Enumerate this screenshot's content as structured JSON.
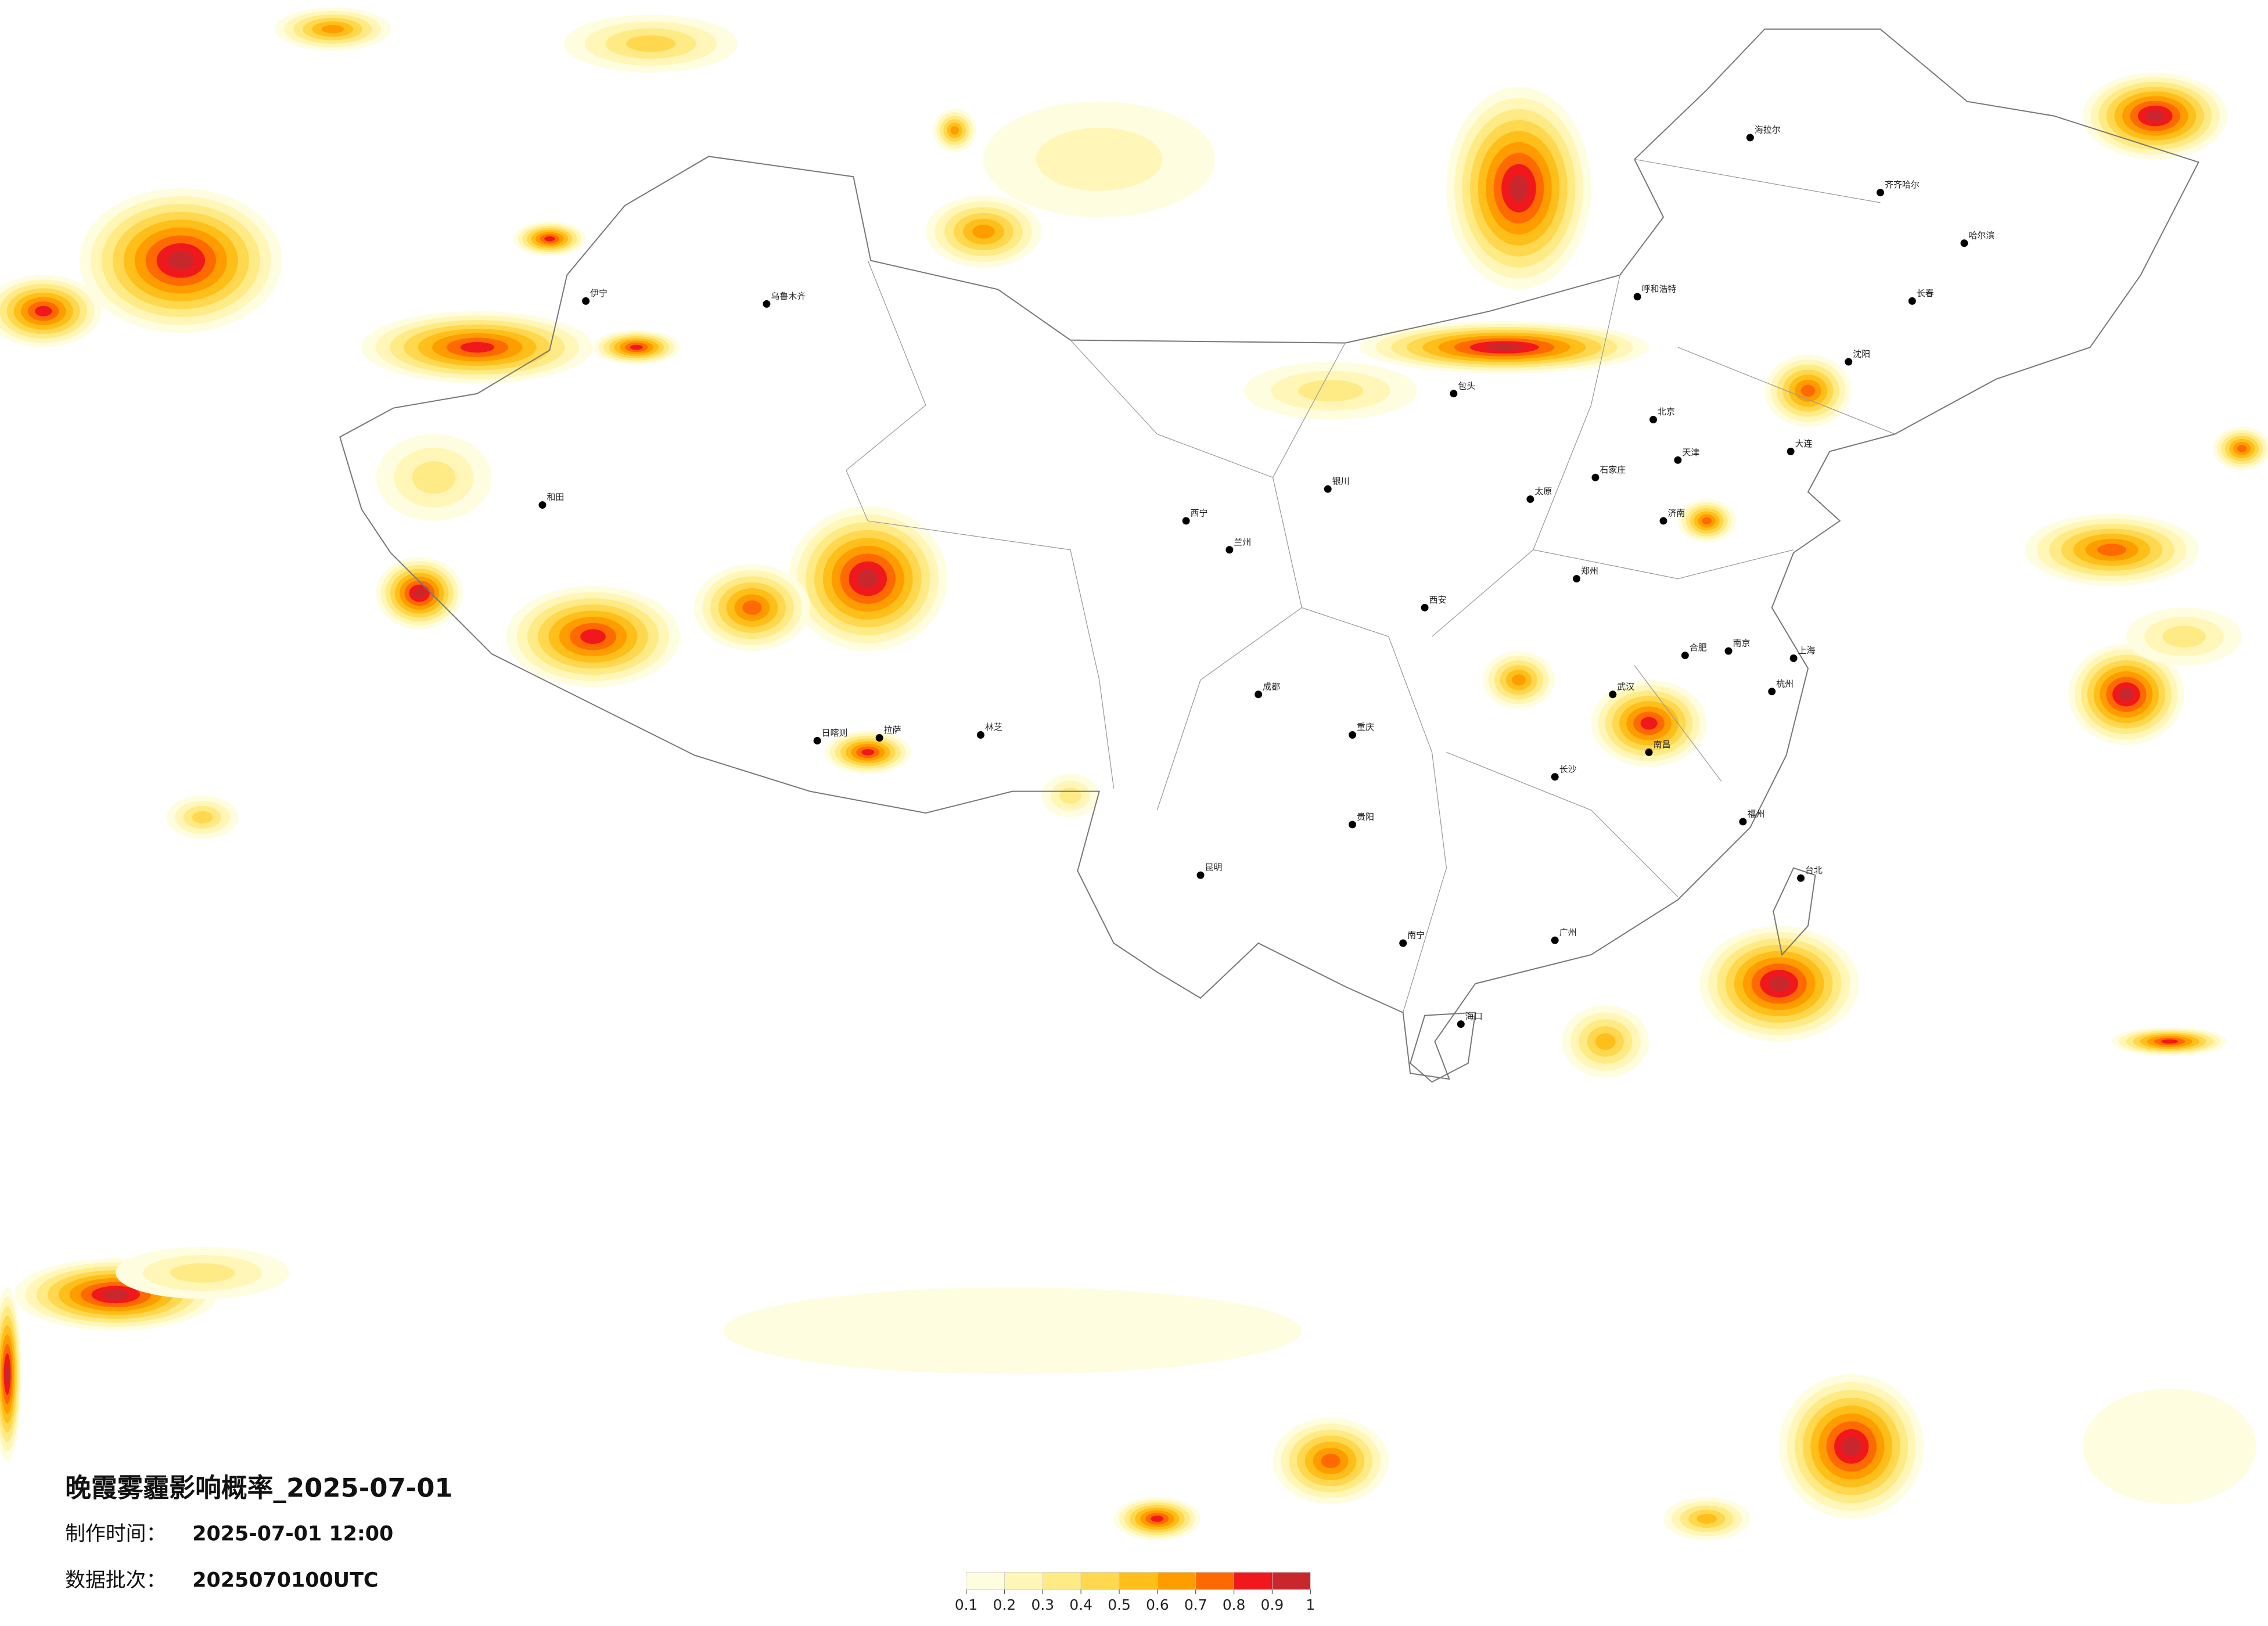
{
  "header": {
    "title": "晚霞雾霾影响概率_2025-07-01",
    "made_label": "制作时间：",
    "made_value": "2025-07-01 12:00",
    "batch_label": "数据批次：",
    "batch_value": "2025070100UTC"
  },
  "legend": {
    "ticks": [
      0.1,
      0.2,
      0.3,
      0.4,
      0.5,
      0.6,
      0.7,
      0.8,
      0.9,
      1
    ],
    "colors": [
      "#fffde0",
      "#fff6b8",
      "#ffeb85",
      "#ffd84f",
      "#ffbf1a",
      "#ff9d00",
      "#ff6a00",
      "#f0181c",
      "#c8282d"
    ]
  },
  "cities": [
    "北京",
    "天津",
    "石家庄",
    "太原",
    "济南",
    "郑州",
    "西安",
    "兰州",
    "西宁",
    "银川",
    "呼和浩特",
    "沈阳",
    "长春",
    "哈尔滨",
    "大连",
    "南京",
    "上海",
    "杭州",
    "合肥",
    "武汉",
    "长沙",
    "南昌",
    "福州",
    "台北",
    "广州",
    "南宁",
    "海口",
    "贵阳",
    "昆明",
    "重庆",
    "成都",
    "拉萨",
    "乌鲁木齐",
    "伊宁",
    "和田",
    "海拉尔",
    "齐齐哈尔",
    "包头",
    "日喀则",
    "林芝"
  ]
}
